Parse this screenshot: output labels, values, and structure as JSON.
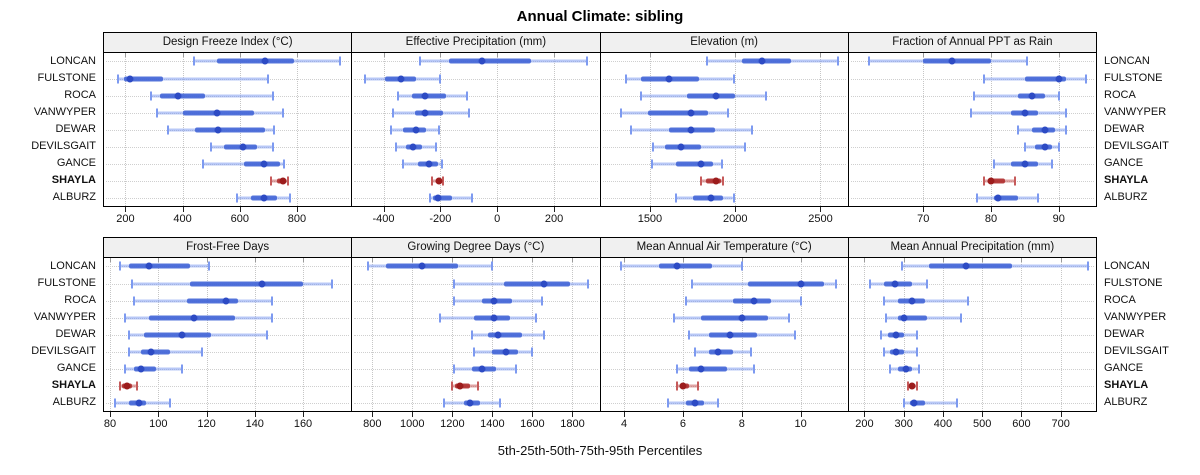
{
  "title": "Annual Climate: sibling",
  "caption": "5th-25th-50th-75th-95th Percentiles",
  "sites": [
    "LONCAN",
    "FULSTONE",
    "ROCA",
    "VANWYPER",
    "DEWAR",
    "DEVILSGAIT",
    "GANCE",
    "SHAYLA",
    "ALBURZ"
  ],
  "highlight_site": "SHAYLA",
  "colors": {
    "blue_dot": "#2d4bc4",
    "blue_band": "#3f62d6",
    "blue_range": "#7d9af0",
    "red_dot": "#9c1c1c",
    "red_band": "#ad2a2a",
    "red_range": "#c65b5b",
    "grid": "#c8c8c8",
    "strip_bg": "#f0f0f0",
    "border": "#000000"
  },
  "chart_data": [
    {
      "type": "dotplot-percentile",
      "title": "Design Freeze Index (°C)",
      "row": 0,
      "col": 0,
      "xlim": [
        125,
        990
      ],
      "ticks": [
        200,
        400,
        600,
        800
      ],
      "percentile_labels": [
        "p5",
        "p25",
        "p50",
        "p75",
        "p95"
      ],
      "values": [
        [
          440,
          520,
          690,
          790,
          950
        ],
        [
          175,
          195,
          215,
          330,
          700
        ],
        [
          290,
          320,
          385,
          480,
          715
        ],
        [
          310,
          400,
          520,
          650,
          750
        ],
        [
          350,
          445,
          525,
          690,
          720
        ],
        [
          500,
          545,
          610,
          660,
          715
        ],
        [
          470,
          615,
          685,
          740,
          755
        ],
        [
          710,
          730,
          750,
          760,
          770
        ],
        [
          590,
          640,
          685,
          730,
          775
        ]
      ]
    },
    {
      "type": "dotplot-percentile",
      "title": "Effective Precipitation (mm)",
      "row": 0,
      "col": 1,
      "xlim": [
        -510,
        360
      ],
      "ticks": [
        -400,
        -200,
        0,
        200
      ],
      "percentile_labels": [
        "p5",
        "p25",
        "p50",
        "p75",
        "p95"
      ],
      "values": [
        [
          -270,
          -170,
          -55,
          120,
          315
        ],
        [
          -465,
          -395,
          -340,
          -285,
          -200
        ],
        [
          -350,
          -300,
          -255,
          -180,
          -105
        ],
        [
          -365,
          -290,
          -255,
          -190,
          -100
        ],
        [
          -375,
          -330,
          -285,
          -250,
          -205
        ],
        [
          -355,
          -320,
          -295,
          -265,
          -215
        ],
        [
          -330,
          -280,
          -240,
          -210,
          -195
        ],
        [
          -230,
          -215,
          -203,
          -196,
          -190
        ],
        [
          -235,
          -225,
          -210,
          -160,
          -90
        ]
      ]
    },
    {
      "type": "dotplot-percentile",
      "title": "Elevation (m)",
      "row": 0,
      "col": 2,
      "xlim": [
        1210,
        2660
      ],
      "ticks": [
        1500,
        2000,
        2500
      ],
      "percentile_labels": [
        "p5",
        "p25",
        "p50",
        "p75",
        "p95"
      ],
      "values": [
        [
          1835,
          2040,
          2160,
          2330,
          2600
        ],
        [
          1360,
          1450,
          1610,
          1790,
          1990
        ],
        [
          1450,
          1720,
          1890,
          2000,
          2180
        ],
        [
          1330,
          1490,
          1740,
          1840,
          1960
        ],
        [
          1390,
          1610,
          1740,
          1880,
          2100
        ],
        [
          1520,
          1590,
          1680,
          1800,
          2060
        ],
        [
          1510,
          1650,
          1800,
          1870,
          1920
        ],
        [
          1800,
          1830,
          1890,
          1915,
          1930
        ],
        [
          1650,
          1750,
          1860,
          1930,
          1990
        ]
      ]
    },
    {
      "type": "dotplot-percentile",
      "title": "Fraction of Annual PPT as Rain",
      "row": 0,
      "col": 3,
      "xlim": [
        59,
        95.5
      ],
      "ticks": [
        70,
        80,
        90
      ],
      "percentile_labels": [
        "p5",
        "p25",
        "p50",
        "p75",
        "p95"
      ],
      "values": [
        [
          62,
          70,
          74.2,
          80,
          85.3
        ],
        [
          79,
          85,
          90,
          91,
          94
        ],
        [
          77.5,
          84,
          86,
          88,
          90
        ],
        [
          77,
          83,
          85,
          87,
          91
        ],
        [
          84,
          86,
          88,
          89.5,
          91
        ],
        [
          85,
          86.5,
          88,
          89,
          90
        ],
        [
          80.5,
          83,
          85,
          87,
          89
        ],
        [
          79,
          79.5,
          80,
          82,
          83.5
        ],
        [
          78,
          80.5,
          81,
          84,
          87
        ]
      ]
    },
    {
      "type": "dotplot-percentile",
      "title": "Frost-Free Days",
      "row": 1,
      "col": 0,
      "xlim": [
        77.5,
        180
      ],
      "ticks": [
        80,
        100,
        120,
        140,
        160
      ],
      "percentile_labels": [
        "p5",
        "p25",
        "p50",
        "p75",
        "p95"
      ],
      "values": [
        [
          84,
          88,
          96,
          113,
          121
        ],
        [
          89,
          113,
          143,
          160,
          172
        ],
        [
          90,
          112,
          128,
          133,
          147
        ],
        [
          86,
          96,
          115,
          132,
          147
        ],
        [
          88,
          94,
          110,
          122,
          145
        ],
        [
          88,
          93,
          97,
          105,
          118
        ],
        [
          86,
          90,
          93,
          99,
          110
        ],
        [
          84,
          85,
          87,
          89,
          91
        ],
        [
          82,
          88,
          92,
          95,
          105
        ]
      ]
    },
    {
      "type": "dotplot-percentile",
      "title": "Growing Degree Days (°C)",
      "row": 1,
      "col": 1,
      "xlim": [
        700,
        1935
      ],
      "ticks": [
        800,
        1000,
        1200,
        1400,
        1600,
        1800
      ],
      "percentile_labels": [
        "p5",
        "p25",
        "p50",
        "p75",
        "p95"
      ],
      "values": [
        [
          780,
          870,
          1050,
          1230,
          1400
        ],
        [
          1210,
          1460,
          1660,
          1790,
          1880
        ],
        [
          1210,
          1350,
          1410,
          1500,
          1650
        ],
        [
          1140,
          1310,
          1410,
          1490,
          1620
        ],
        [
          1300,
          1380,
          1430,
          1550,
          1660
        ],
        [
          1310,
          1400,
          1470,
          1530,
          1600
        ],
        [
          1210,
          1300,
          1350,
          1420,
          1520
        ],
        [
          1200,
          1215,
          1240,
          1290,
          1330
        ],
        [
          1160,
          1260,
          1290,
          1340,
          1440
        ]
      ]
    },
    {
      "type": "dotplot-percentile",
      "title": "Mean Annual Air Temperature (°C)",
      "row": 1,
      "col": 2,
      "xlim": [
        3.2,
        11.6
      ],
      "ticks": [
        4,
        6,
        8,
        10
      ],
      "percentile_labels": [
        "p5",
        "p25",
        "p50",
        "p75",
        "p95"
      ],
      "values": [
        [
          3.9,
          5.2,
          5.8,
          7.0,
          8.0
        ],
        [
          6.3,
          8.2,
          10.0,
          10.8,
          11.2
        ],
        [
          6.1,
          7.7,
          8.4,
          9.0,
          10.0
        ],
        [
          5.7,
          6.6,
          8.0,
          8.9,
          9.6
        ],
        [
          6.2,
          6.9,
          7.6,
          8.5,
          9.8
        ],
        [
          6.4,
          6.9,
          7.2,
          7.7,
          8.3
        ],
        [
          5.8,
          6.2,
          6.6,
          7.5,
          8.4
        ],
        [
          5.8,
          5.9,
          6.0,
          6.2,
          6.5
        ],
        [
          5.5,
          6.1,
          6.4,
          6.7,
          7.2
        ]
      ]
    },
    {
      "type": "dotplot-percentile",
      "title": "Mean Annual Precipitation (mm)",
      "row": 1,
      "col": 3,
      "xlim": [
        160,
        790
      ],
      "ticks": [
        200,
        300,
        400,
        500,
        600,
        700
      ],
      "percentile_labels": [
        "p5",
        "p25",
        "p50",
        "p75",
        "p95"
      ],
      "values": [
        [
          295,
          365,
          460,
          575,
          770
        ],
        [
          215,
          250,
          278,
          320,
          360
        ],
        [
          250,
          285,
          320,
          355,
          465
        ],
        [
          255,
          285,
          300,
          360,
          445
        ],
        [
          243,
          260,
          280,
          300,
          335
        ],
        [
          250,
          265,
          280,
          300,
          335
        ],
        [
          265,
          285,
          305,
          320,
          340
        ],
        [
          310,
          316,
          322,
          328,
          334
        ],
        [
          300,
          315,
          325,
          355,
          435
        ]
      ]
    }
  ]
}
